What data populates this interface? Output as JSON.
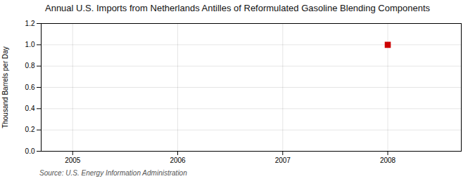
{
  "chart_data": {
    "type": "scatter",
    "title": "Annual U.S. Imports from Netherlands Antilles of Reformulated Gasoline Blending Components",
    "ylabel": "Thousand Barrels per Day",
    "source": "Source: U.S. Energy Information Administration",
    "x": [
      2008
    ],
    "values": [
      1.0
    ],
    "color": "#CC0000",
    "marker": "square",
    "xlim": [
      2004.7,
      2008.7
    ],
    "ylim": [
      0.0,
      1.2
    ],
    "xticks": [
      2005,
      2006,
      2007,
      2008
    ],
    "yticks": [
      {
        "value": 0.0,
        "label": "0.0"
      },
      0.2,
      0.4,
      0.6,
      0.8,
      {
        "value": 1.0,
        "label": "1.0"
      },
      1.2
    ],
    "grid": true
  }
}
